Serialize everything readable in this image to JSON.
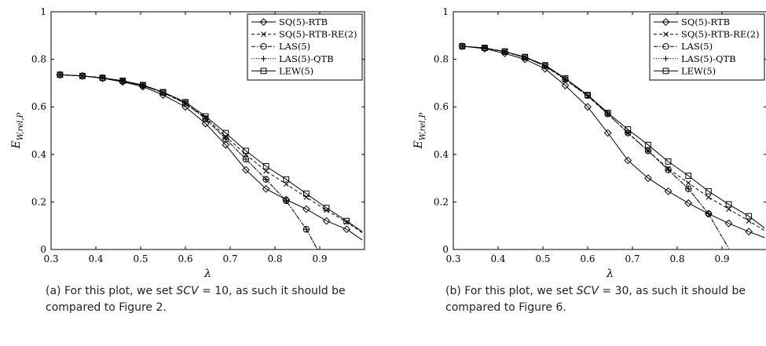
{
  "chart_data": [
    {
      "type": "line",
      "xlabel": "λ",
      "ylabel": "E_{W,rel,P}",
      "xlim": [
        0.3,
        1.0
      ],
      "ylim": [
        0,
        1
      ],
      "xticks": [
        "0.3",
        "0.4",
        "0.5",
        "0.6",
        "0.7",
        "0.8",
        "0.9"
      ],
      "yticks": [
        "0",
        "0.2",
        "0.4",
        "0.6",
        "0.8",
        "1"
      ],
      "legend_position": "top-right",
      "series": [
        {
          "name": "SQ(5)-RTB",
          "marker": "diamond",
          "style": "solid",
          "x": [
            0.32,
            0.37,
            0.415,
            0.46,
            0.505,
            0.55,
            0.6,
            0.645,
            0.69,
            0.735,
            0.78,
            0.825,
            0.87,
            0.915,
            0.96,
            0.995
          ],
          "y": [
            0.735,
            0.73,
            0.72,
            0.705,
            0.685,
            0.65,
            0.6,
            0.53,
            0.44,
            0.335,
            0.255,
            0.21,
            0.17,
            0.12,
            0.085,
            0.04
          ]
        },
        {
          "name": "SQ(5)-RTB-RE(2)",
          "marker": "cross",
          "style": "dashed",
          "x": [
            0.32,
            0.37,
            0.415,
            0.46,
            0.505,
            0.55,
            0.6,
            0.645,
            0.69,
            0.735,
            0.78,
            0.825,
            0.87,
            0.915,
            0.96,
            0.995
          ],
          "y": [
            0.735,
            0.73,
            0.722,
            0.708,
            0.69,
            0.66,
            0.615,
            0.555,
            0.475,
            0.4,
            0.33,
            0.275,
            0.22,
            0.165,
            0.115,
            0.07
          ]
        },
        {
          "name": "LAS(5)",
          "marker": "circle",
          "style": "dashdot",
          "x": [
            0.32,
            0.37,
            0.415,
            0.46,
            0.505,
            0.55,
            0.6,
            0.645,
            0.69,
            0.735,
            0.78,
            0.825,
            0.87,
            0.895
          ],
          "y": [
            0.735,
            0.73,
            0.722,
            0.708,
            0.69,
            0.66,
            0.615,
            0.55,
            0.465,
            0.38,
            0.295,
            0.205,
            0.085,
            0.0
          ]
        },
        {
          "name": "LAS(5)-QTB",
          "marker": "plus",
          "style": "dotted",
          "x": [
            0.32,
            0.37,
            0.415,
            0.46,
            0.505,
            0.55,
            0.6,
            0.645,
            0.69,
            0.735,
            0.78,
            0.825,
            0.87,
            0.895
          ],
          "y": [
            0.735,
            0.73,
            0.722,
            0.708,
            0.69,
            0.66,
            0.615,
            0.55,
            0.465,
            0.38,
            0.295,
            0.205,
            0.085,
            0.0
          ]
        },
        {
          "name": "LEW(5)",
          "marker": "square",
          "style": "solid",
          "x": [
            0.32,
            0.37,
            0.415,
            0.46,
            0.505,
            0.55,
            0.6,
            0.645,
            0.69,
            0.735,
            0.78,
            0.825,
            0.87,
            0.915,
            0.96,
            0.995
          ],
          "y": [
            0.735,
            0.73,
            0.722,
            0.71,
            0.692,
            0.662,
            0.62,
            0.56,
            0.49,
            0.415,
            0.35,
            0.295,
            0.235,
            0.175,
            0.12,
            0.075
          ]
        }
      ]
    },
    {
      "type": "line",
      "xlabel": "λ",
      "ylabel": "E_{W,rel,P}",
      "xlim": [
        0.3,
        1.0
      ],
      "ylim": [
        0,
        1
      ],
      "xticks": [
        "0.3",
        "0.4",
        "0.5",
        "0.6",
        "0.7",
        "0.8",
        "0.9"
      ],
      "yticks": [
        "0",
        "0.2",
        "0.4",
        "0.6",
        "0.8",
        "1"
      ],
      "legend_position": "top-right",
      "series": [
        {
          "name": "SQ(5)-RTB",
          "marker": "diamond",
          "style": "solid",
          "x": [
            0.32,
            0.37,
            0.415,
            0.46,
            0.505,
            0.55,
            0.6,
            0.645,
            0.69,
            0.735,
            0.78,
            0.825,
            0.87,
            0.915,
            0.96,
            0.995
          ],
          "y": [
            0.855,
            0.845,
            0.825,
            0.8,
            0.76,
            0.69,
            0.6,
            0.49,
            0.375,
            0.3,
            0.245,
            0.195,
            0.15,
            0.11,
            0.075,
            0.05
          ]
        },
        {
          "name": "SQ(5)-RTB-RE(2)",
          "marker": "cross",
          "style": "dashed",
          "x": [
            0.32,
            0.37,
            0.415,
            0.46,
            0.505,
            0.55,
            0.6,
            0.645,
            0.69,
            0.735,
            0.78,
            0.825,
            0.87,
            0.915,
            0.96,
            0.995
          ],
          "y": [
            0.855,
            0.848,
            0.832,
            0.808,
            0.772,
            0.715,
            0.645,
            0.57,
            0.49,
            0.415,
            0.34,
            0.28,
            0.22,
            0.17,
            0.12,
            0.08
          ]
        },
        {
          "name": "LAS(5)",
          "marker": "circle",
          "style": "dashdot",
          "x": [
            0.32,
            0.37,
            0.415,
            0.46,
            0.505,
            0.55,
            0.6,
            0.645,
            0.69,
            0.735,
            0.78,
            0.825,
            0.87,
            0.915
          ],
          "y": [
            0.855,
            0.848,
            0.832,
            0.808,
            0.772,
            0.715,
            0.648,
            0.57,
            0.49,
            0.415,
            0.335,
            0.255,
            0.15,
            0.005
          ]
        },
        {
          "name": "LAS(5)-QTB",
          "marker": "plus",
          "style": "dotted",
          "x": [
            0.32,
            0.37,
            0.415,
            0.46,
            0.505,
            0.55,
            0.6,
            0.645,
            0.69,
            0.735,
            0.78,
            0.825,
            0.87,
            0.915
          ],
          "y": [
            0.855,
            0.848,
            0.832,
            0.808,
            0.772,
            0.715,
            0.648,
            0.57,
            0.49,
            0.415,
            0.335,
            0.255,
            0.15,
            0.005
          ]
        },
        {
          "name": "LEW(5)",
          "marker": "square",
          "style": "solid",
          "x": [
            0.32,
            0.37,
            0.415,
            0.46,
            0.505,
            0.55,
            0.6,
            0.645,
            0.69,
            0.735,
            0.78,
            0.825,
            0.87,
            0.915,
            0.96,
            0.995
          ],
          "y": [
            0.855,
            0.848,
            0.833,
            0.81,
            0.775,
            0.72,
            0.65,
            0.575,
            0.505,
            0.44,
            0.37,
            0.31,
            0.245,
            0.19,
            0.14,
            0.09
          ]
        }
      ]
    }
  ],
  "captions": [
    {
      "prefix": "(a) For this plot, we set ",
      "var": "SCV",
      "suffix": " = 10, as such it should be compared to Figure 2."
    },
    {
      "prefix": "(b) For this plot, we set ",
      "var": "SCV",
      "suffix": " = 30, as such it should be compared to Figure 6."
    }
  ]
}
